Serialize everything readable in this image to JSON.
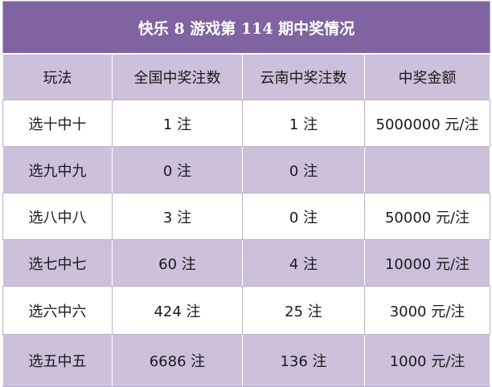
{
  "title": "快乐 8 游戏第 114 期中奖情况",
  "columns": [
    "玩法",
    "全国中奖注数",
    "云南中奖注数",
    "中奖金额"
  ],
  "rows": [
    [
      "选十中十",
      "1 注",
      "1 注",
      "5000000 元/注"
    ],
    [
      "选九中九",
      "0 注",
      "0 注",
      ""
    ],
    [
      "选八中八",
      "3 注",
      "0 注",
      "50000 元/注"
    ],
    [
      "选七中七",
      "60 注",
      "4 注",
      "10000 元/注"
    ],
    [
      "选六中六",
      "424 注",
      "25 注",
      "3000 元/注"
    ],
    [
      "选五中五",
      "6686 注",
      "136 注",
      "1000 元/注"
    ]
  ],
  "colors": {
    "title_bg": "#8064a2",
    "band_bg": "#ccc0da",
    "plain_bg": "#ffffff",
    "text": "#1a1a1a"
  }
}
